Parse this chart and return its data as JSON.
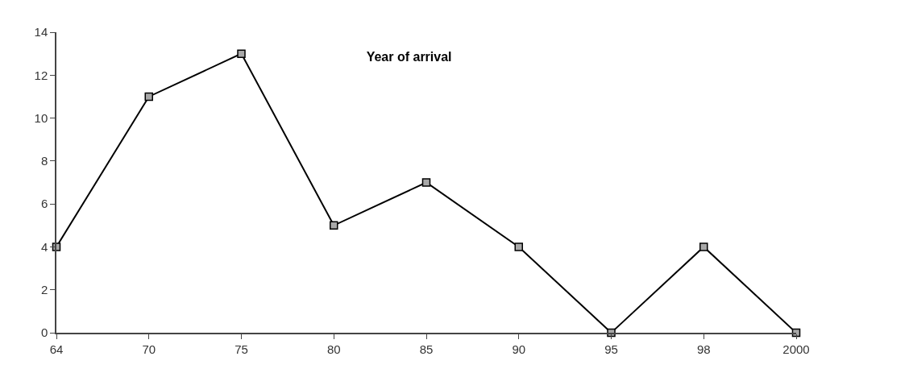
{
  "chart_data": {
    "type": "line",
    "title": "Year of arrival",
    "categories": [
      "64",
      "70",
      "75",
      "80",
      "85",
      "90",
      "95",
      "98",
      "2000"
    ],
    "series": [
      {
        "color": "#000000",
        "values": [
          4,
          11,
          13,
          5,
          7,
          4,
          0,
          4,
          0
        ]
      }
    ],
    "ylim": [
      0,
      14
    ],
    "yticks": [
      0,
      2,
      4,
      6,
      8,
      10,
      12,
      14
    ],
    "legend": false,
    "marker": "square",
    "line_style": "solid"
  }
}
